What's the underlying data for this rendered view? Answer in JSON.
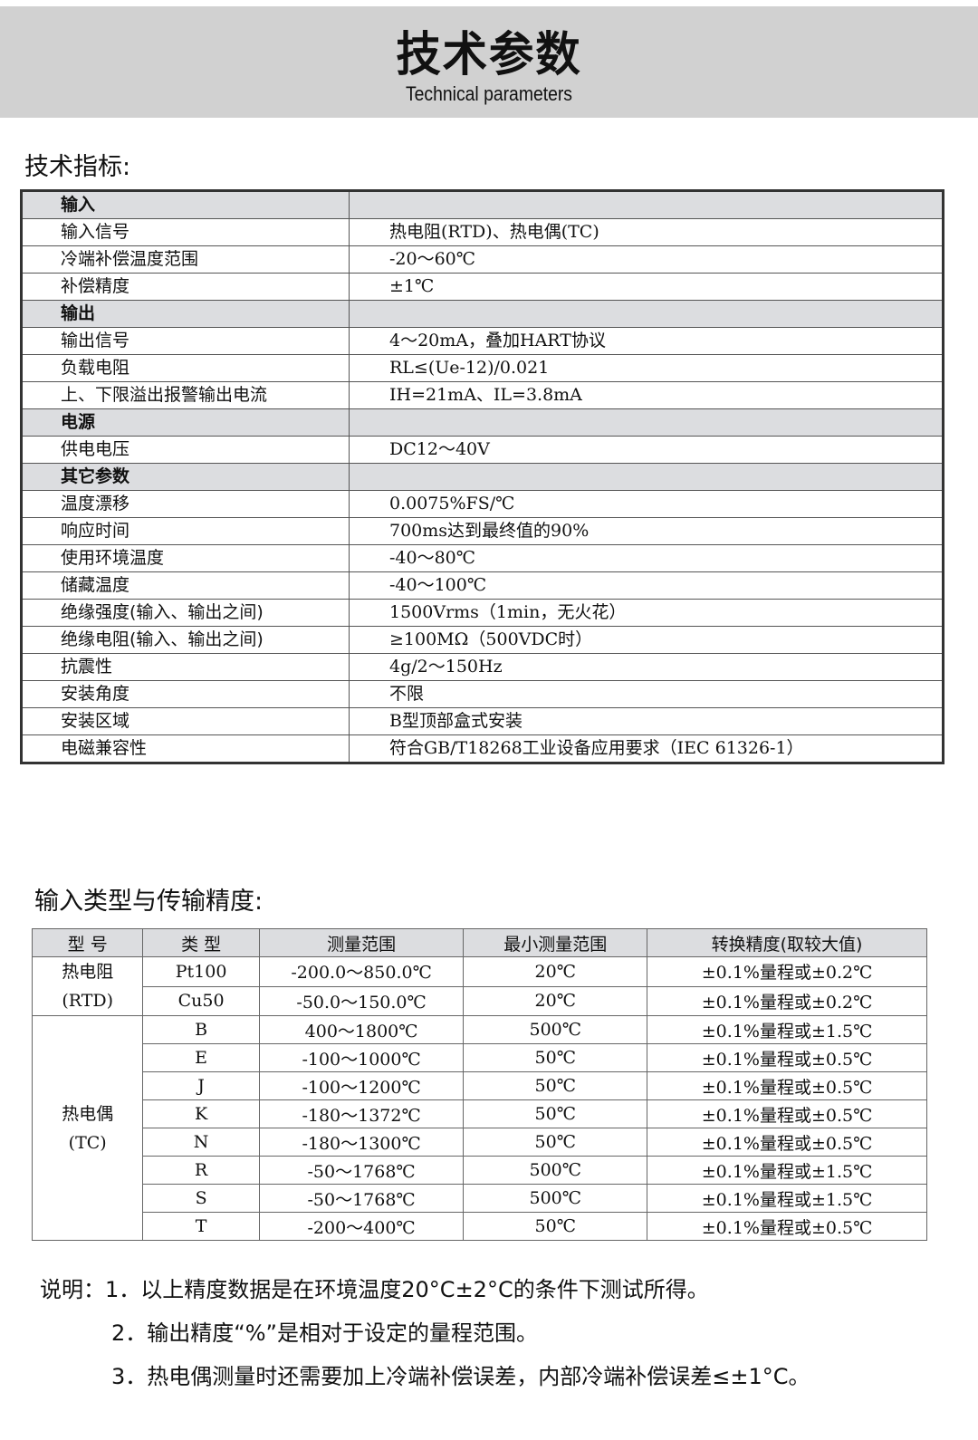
{
  "header": {
    "title": "技术参数",
    "subtitle": "Technical parameters"
  },
  "spec": {
    "heading": "技术指标:",
    "rows": [
      {
        "section": true,
        "label": "输入",
        "value": ""
      },
      {
        "label": "输入信号",
        "value": "热电阻(RTD)、热电偶(TC)"
      },
      {
        "label": "冷端补偿温度范围",
        "value": "-20～60℃"
      },
      {
        "label": "补偿精度",
        "value": "±1℃"
      },
      {
        "section": true,
        "label": "输出",
        "value": ""
      },
      {
        "label": "输出信号",
        "value": "4～20mA，叠加HART协议"
      },
      {
        "label": "负载电阻",
        "value": "RL≤(Ue-12)/0.021"
      },
      {
        "label": "上、下限溢出报警输出电流",
        "value": "IH=21mA、IL=3.8mA"
      },
      {
        "section": true,
        "label": "电源",
        "value": ""
      },
      {
        "label": "供电电压",
        "value": "DC12～40V"
      },
      {
        "section": true,
        "label": "其它参数",
        "value": ""
      },
      {
        "label": "温度漂移",
        "value": "0.0075%FS/℃"
      },
      {
        "label": "响应时间",
        "value": "700ms达到最终值的90%"
      },
      {
        "label": "使用环境温度",
        "value": "-40～80℃"
      },
      {
        "label": "储藏温度",
        "value": "-40～100℃"
      },
      {
        "label": "绝缘强度(输入、输出之间)",
        "value": "1500Vrms（1min，无火花）"
      },
      {
        "label": "绝缘电阻(输入、输出之间)",
        "value": "≥100MΩ（500VDC时）"
      },
      {
        "label": "抗震性",
        "value": "4g/2～150Hz"
      },
      {
        "label": "安装角度",
        "value": "不限"
      },
      {
        "label": "安装区域",
        "value": "B型顶部盒式安装"
      },
      {
        "label": "电磁兼容性",
        "value": "符合GB/T18268工业设备应用要求（IEC 61326-1）"
      }
    ]
  },
  "accuracy": {
    "heading": "输入类型与传输精度:",
    "columns": [
      "型 号",
      "类 型",
      "测量范围",
      "最小测量范围",
      "转换精度(取较大值)"
    ],
    "groups": {
      "rtd": [
        "热电阻",
        "(RTD)"
      ],
      "tc": [
        "热电偶",
        "(TC)"
      ]
    },
    "rows": [
      [
        "Pt100",
        "-200.0～850.0℃",
        "20℃",
        "±0.1%量程或±0.2℃"
      ],
      [
        "Cu50",
        "-50.0～150.0℃",
        "20℃",
        "±0.1%量程或±0.2℃"
      ],
      [
        "B",
        "400～1800℃",
        "500℃",
        "±0.1%量程或±1.5℃"
      ],
      [
        "E",
        "-100～1000℃",
        "50℃",
        "±0.1%量程或±0.5℃"
      ],
      [
        "J",
        "-100～1200℃",
        "50℃",
        "±0.1%量程或±0.5℃"
      ],
      [
        "K",
        "-180～1372℃",
        "50℃",
        "±0.1%量程或±0.5℃"
      ],
      [
        "N",
        "-180～1300℃",
        "50℃",
        "±0.1%量程或±0.5℃"
      ],
      [
        "R",
        "-50～1768℃",
        "500℃",
        "±0.1%量程或±1.5℃"
      ],
      [
        "S",
        "-50～1768℃",
        "500℃",
        "±0.1%量程或±1.5℃"
      ],
      [
        "T",
        "-200～400℃",
        "50℃",
        "±0.1%量程或±0.5℃"
      ]
    ]
  },
  "notes": [
    "说明：1．以上精度数据是在环境温度20°C±2°C的条件下测试所得。",
    "2．输出精度“%”是相对于设定的量程范围。",
    "3．热电偶测量时还需要加上冷端补偿误差，内部冷端补偿误差≤±1°C。"
  ]
}
